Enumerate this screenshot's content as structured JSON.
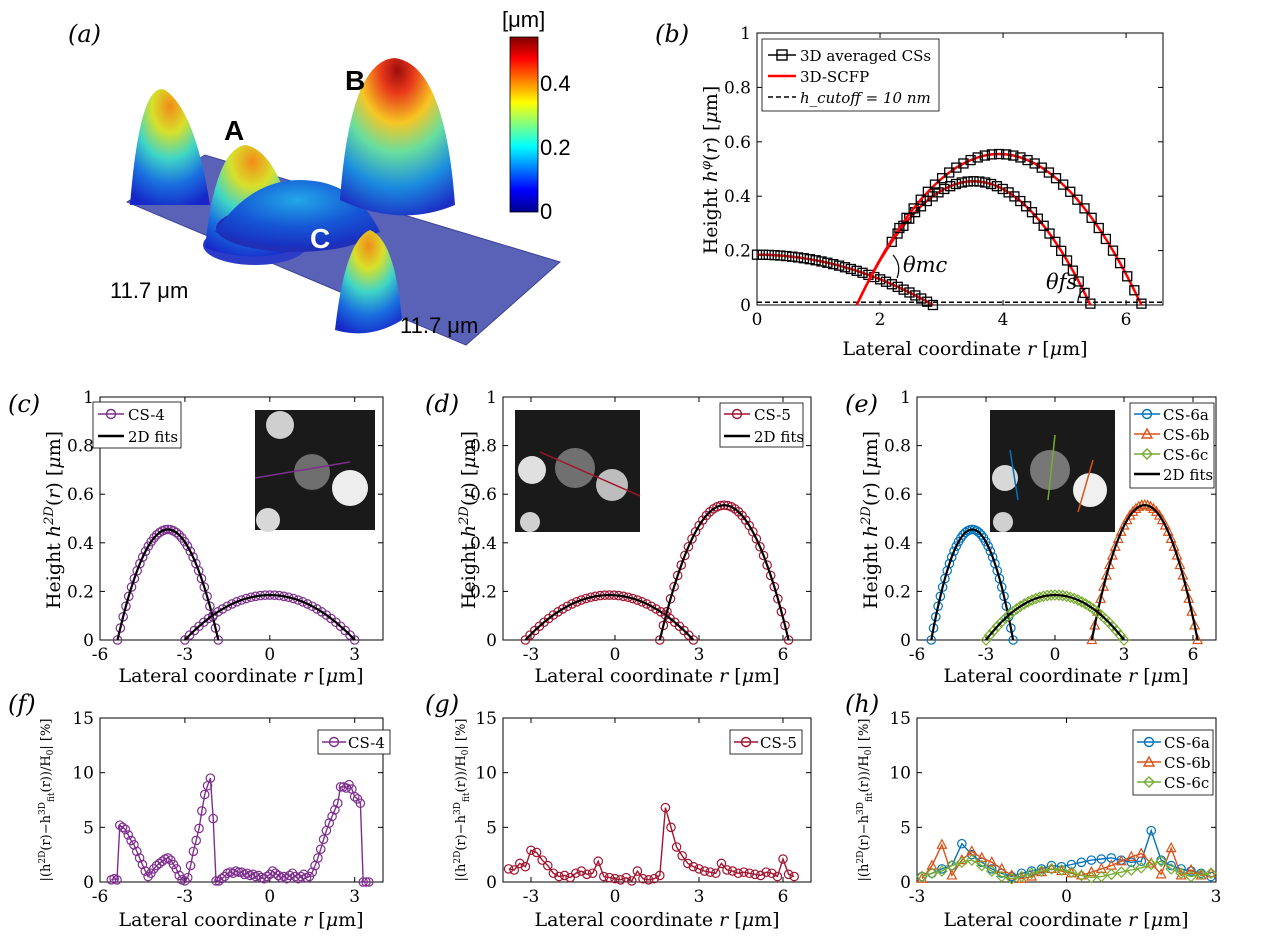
{
  "colors": {
    "purple": "#7e2f8e",
    "crimson": "#a2142f",
    "blue": "#0072bd",
    "orange": "#d95319",
    "green": "#77ac30",
    "red": "#ff0000",
    "black": "#000000"
  },
  "chart_data": [
    {
      "id": "a",
      "type": "surface3d",
      "panel_label": "(a)",
      "colorbar": {
        "unit": "[μm]",
        "ticks": [
          "0",
          "0.2",
          "0.4"
        ],
        "range": [
          0,
          0.55
        ]
      },
      "peak_labels": [
        "A",
        "B",
        "C"
      ],
      "dim_x": "11.7 μm",
      "dim_y": "11.7 μm"
    },
    {
      "id": "b",
      "type": "line",
      "panel_label": "(b)",
      "xlabel": "Lateral coordinate r [μm]",
      "ylabel": "Height h^φ(r) [μm]",
      "xlim": [
        0,
        6.6
      ],
      "ylim": [
        0,
        1
      ],
      "xticks": [
        "0",
        "2",
        "4",
        "6"
      ],
      "yticks": [
        "0",
        "0.2",
        "0.4",
        "0.6",
        "0.8",
        "1"
      ],
      "legend": [
        "3D averaged CSs",
        "3D-SCFP",
        "h_cutoff = 10 nm"
      ],
      "annotations": [
        "θmc",
        "θfs"
      ],
      "series": [
        {
          "name": "3D averaged CSs (C)",
          "x0": 0,
          "x1": 2.86,
          "h": 0.185
        },
        {
          "name": "3D averaged CSs (A)",
          "x0": 1.62,
          "x1": 5.42,
          "h": 0.455
        },
        {
          "name": "3D averaged CSs (B)",
          "x0": 1.62,
          "x1": 6.25,
          "h": 0.555
        },
        {
          "name": "h_cutoff",
          "y": 0.01
        }
      ]
    },
    {
      "id": "c",
      "type": "line",
      "panel_label": "(c)",
      "xlabel": "Lateral coordinate r [μm]",
      "ylabel": "Height h^2D(r) [μm]",
      "xlim": [
        -6,
        4
      ],
      "ylim": [
        0,
        1
      ],
      "xticks": [
        "-6",
        "-3",
        "0",
        "3"
      ],
      "yticks": [
        "0",
        "0.2",
        "0.4",
        "0.6",
        "0.8",
        "1"
      ],
      "legend": [
        "CS-4",
        "2D fits"
      ],
      "caps": [
        {
          "center": -3.6,
          "half": 1.78,
          "h": 0.455
        },
        {
          "center": 0.0,
          "half": 3.0,
          "h": 0.185
        }
      ]
    },
    {
      "id": "d",
      "type": "line",
      "panel_label": "(d)",
      "xlabel": "Lateral coordinate r [μm]",
      "ylabel": "Height h^2D(r) [μm]",
      "xlim": [
        -4,
        7
      ],
      "ylim": [
        0,
        1
      ],
      "xticks": [
        "-3",
        "0",
        "3",
        "6"
      ],
      "yticks": [
        "0",
        "0.2",
        "0.4",
        "0.6",
        "0.8",
        "1"
      ],
      "legend": [
        "CS-5",
        "2D fits"
      ],
      "caps": [
        {
          "center": -0.2,
          "half": 3.0,
          "h": 0.185
        },
        {
          "center": 3.9,
          "half": 2.3,
          "h": 0.555
        }
      ]
    },
    {
      "id": "e",
      "type": "line",
      "panel_label": "(e)",
      "xlabel": "Lateral coordinate r [μm]",
      "ylabel": "Height h^2D(r) [μm]",
      "xlim": [
        -6,
        7
      ],
      "ylim": [
        0,
        1
      ],
      "xticks": [
        "-6",
        "-3",
        "0",
        "3",
        "6"
      ],
      "yticks": [
        "0",
        "0.2",
        "0.4",
        "0.6",
        "0.8",
        "1"
      ],
      "legend": [
        "CS-6a",
        "CS-6b",
        "CS-6c",
        "2D fits"
      ],
      "caps": [
        {
          "center": -3.6,
          "half": 1.78,
          "h": 0.455
        },
        {
          "center": 3.9,
          "half": 2.3,
          "h": 0.555
        },
        {
          "center": 0.0,
          "half": 3.0,
          "h": 0.185
        }
      ]
    },
    {
      "id": "f",
      "type": "line",
      "panel_label": "(f)",
      "xlabel": "Lateral coordinate r [μm]",
      "ylabel": "|(h^2D(r) − h^3D_fit(r)) / H0| [%]",
      "xlim": [
        -6,
        4
      ],
      "ylim": [
        0,
        15
      ],
      "xticks": [
        "-6",
        "-3",
        "0",
        "3"
      ],
      "yticks": [
        "0",
        "5",
        "10",
        "15"
      ],
      "legend": [
        "CS-4"
      ],
      "series": [
        {
          "name": "CS-4",
          "x": [
            -5.6,
            -5.5,
            -5.4,
            -5.3,
            -5.2,
            -5.1,
            -5.0,
            -4.9,
            -4.8,
            -4.7,
            -4.6,
            -4.5,
            -4.4,
            -4.3,
            -4.2,
            -4.1,
            -4.0,
            -3.9,
            -3.8,
            -3.7,
            -3.6,
            -3.5,
            -3.4,
            -3.3,
            -3.2,
            -3.1,
            -3.0,
            -2.9,
            -2.8,
            -2.7,
            -2.6,
            -2.5,
            -2.4,
            -2.3,
            -2.2,
            -2.1,
            -2.0,
            -1.9,
            -1.8,
            -1.7,
            -1.6,
            -1.5,
            -1.4,
            -1.3,
            -1.2,
            -1.1,
            -1.0,
            -0.9,
            -0.8,
            -0.7,
            -0.6,
            -0.5,
            -0.4,
            -0.3,
            -0.2,
            -0.1,
            0.0,
            0.1,
            0.2,
            0.3,
            0.4,
            0.5,
            0.6,
            0.7,
            0.8,
            0.9,
            1.0,
            1.1,
            1.2,
            1.3,
            1.4,
            1.5,
            1.6,
            1.7,
            1.8,
            1.9,
            2.0,
            2.1,
            2.2,
            2.3,
            2.4,
            2.5,
            2.6,
            2.7,
            2.8,
            2.9,
            3.0,
            3.1,
            3.2,
            3.3,
            3.4,
            3.5
          ],
          "y": [
            0.2,
            0.3,
            0.2,
            5.2,
            5.0,
            4.8,
            4.3,
            3.8,
            3.4,
            2.8,
            2.2,
            1.6,
            1.0,
            0.5,
            0.8,
            1.2,
            1.5,
            1.7,
            1.9,
            2.1,
            2.2,
            2.0,
            1.6,
            1.2,
            0.6,
            0.2,
            0.1,
            0.4,
            1.5,
            2.8,
            3.8,
            4.9,
            6.5,
            8.0,
            8.8,
            9.5,
            5.8,
            0.1,
            0.1,
            0.3,
            0.5,
            0.8,
            0.9,
            0.8,
            1.0,
            0.9,
            0.9,
            0.7,
            0.8,
            0.6,
            0.7,
            0.5,
            0.6,
            0.4,
            0.3,
            0.5,
            0.7,
            1.0,
            0.8,
            0.6,
            0.4,
            0.5,
            0.3,
            0.6,
            0.8,
            0.5,
            0.3,
            0.5,
            0.7,
            0.4,
            0.5,
            0.9,
            1.5,
            2.2,
            3.0,
            3.9,
            4.7,
            5.4,
            6.0,
            6.6,
            7.2,
            8.7,
            8.7,
            8.6,
            8.9,
            8.5,
            7.8,
            7.6,
            7.2,
            0,
            0,
            0
          ]
        }
      ]
    },
    {
      "id": "g",
      "type": "line",
      "panel_label": "(g)",
      "xlabel": "Lateral coordinate r [μm]",
      "ylabel": "|(h^2D(r) − h^3D_fit(r)) / H0| [%]",
      "xlim": [
        -4,
        7
      ],
      "ylim": [
        0,
        15
      ],
      "xticks": [
        "-3",
        "0",
        "3",
        "6"
      ],
      "yticks": [
        "0",
        "5",
        "10",
        "15"
      ],
      "legend": [
        "CS-5"
      ],
      "series": [
        {
          "name": "CS-5",
          "x": [
            -3.8,
            -3.6,
            -3.4,
            -3.2,
            -3.0,
            -2.8,
            -2.6,
            -2.4,
            -2.2,
            -2.0,
            -1.8,
            -1.6,
            -1.4,
            -1.2,
            -1.0,
            -0.8,
            -0.6,
            -0.4,
            -0.2,
            0.0,
            0.2,
            0.4,
            0.6,
            0.8,
            1.0,
            1.2,
            1.4,
            1.6,
            1.8,
            2.0,
            2.2,
            2.4,
            2.6,
            2.8,
            3.0,
            3.2,
            3.4,
            3.6,
            3.8,
            4.0,
            4.2,
            4.4,
            4.6,
            4.8,
            5.0,
            5.2,
            5.4,
            5.6,
            5.8,
            6.0,
            6.2,
            6.4
          ],
          "y": [
            1.2,
            1.1,
            1.7,
            1.4,
            2.9,
            2.7,
            2.0,
            1.5,
            0.8,
            0.5,
            0.6,
            0.4,
            0.8,
            1.0,
            0.7,
            0.8,
            1.9,
            0.5,
            0.4,
            0.3,
            0.2,
            0.4,
            0.1,
            1.0,
            0.3,
            0.2,
            0.3,
            0.6,
            6.8,
            5.0,
            3.2,
            2.4,
            1.7,
            1.4,
            1.2,
            1.0,
            0.9,
            0.8,
            1.7,
            1.1,
            1.0,
            0.8,
            0.9,
            0.8,
            0.7,
            0.6,
            0.9,
            0.8,
            0.5,
            2.1,
            0.7,
            0.5
          ]
        }
      ]
    },
    {
      "id": "h",
      "type": "line",
      "panel_label": "(h)",
      "xlabel": "Lateral coordinate r [μm]",
      "ylabel": "|(h^2D(r) − h^3D_fit(r)) / H0| [%]",
      "xlim": [
        -3,
        3
      ],
      "ylim": [
        0,
        15
      ],
      "xticks": [
        "-3",
        "0",
        "3"
      ],
      "yticks": [
        "0",
        "5",
        "10",
        "15"
      ],
      "legend": [
        "CS-6a",
        "CS-6b",
        "CS-6c"
      ],
      "series": [
        {
          "name": "CS-6a",
          "x": [
            -2.9,
            -2.7,
            -2.5,
            -2.3,
            -2.1,
            -1.9,
            -1.7,
            -1.5,
            -1.3,
            -1.1,
            -0.9,
            -0.7,
            -0.5,
            -0.3,
            -0.1,
            0.1,
            0.3,
            0.5,
            0.7,
            0.9,
            1.1,
            1.3,
            1.5,
            1.7,
            1.9,
            2.1,
            2.3,
            2.5,
            2.7,
            2.9
          ],
          "y": [
            0.5,
            0.8,
            1.2,
            1.5,
            3.5,
            2.5,
            1.8,
            1.2,
            0.8,
            0.5,
            0.8,
            1.0,
            1.2,
            1.5,
            1.4,
            1.6,
            1.8,
            2.0,
            2.1,
            2.2,
            2.0,
            1.8,
            1.9,
            4.7,
            2.0,
            1.5,
            1.2,
            1.0,
            0.8,
            0.5
          ]
        },
        {
          "name": "CS-6b",
          "x": [
            -2.9,
            -2.7,
            -2.5,
            -2.3,
            -2.1,
            -1.9,
            -1.7,
            -1.5,
            -1.3,
            -1.1,
            -0.9,
            -0.7,
            -0.5,
            -0.3,
            -0.1,
            0.1,
            0.3,
            0.5,
            0.7,
            0.9,
            1.1,
            1.3,
            1.5,
            1.7,
            1.9,
            2.1,
            2.3,
            2.5,
            2.7,
            2.9
          ],
          "y": [
            0.3,
            1.5,
            3.4,
            0.6,
            2.0,
            2.8,
            2.2,
            1.8,
            1.2,
            0.6,
            0.3,
            0.5,
            0.9,
            1.2,
            1.0,
            0.8,
            0.6,
            0.9,
            1.2,
            1.5,
            1.9,
            2.3,
            2.6,
            1.7,
            0.7,
            3.1,
            0.6,
            1.1,
            0.6,
            0.8
          ]
        },
        {
          "name": "CS-6c",
          "x": [
            -2.9,
            -2.7,
            -2.5,
            -2.3,
            -2.1,
            -1.9,
            -1.7,
            -1.5,
            -1.3,
            -1.1,
            -0.9,
            -0.7,
            -0.5,
            -0.3,
            -0.1,
            0.1,
            0.3,
            0.5,
            0.7,
            0.9,
            1.1,
            1.3,
            1.5,
            1.7,
            1.9,
            2.1,
            2.3,
            2.5,
            2.7,
            2.9
          ],
          "y": [
            0.5,
            0.8,
            1.0,
            1.5,
            1.8,
            2.0,
            1.5,
            1.0,
            0.5,
            0.3,
            0.5,
            0.8,
            1.0,
            1.2,
            1.1,
            0.9,
            0.6,
            0.4,
            0.5,
            0.7,
            0.9,
            1.1,
            1.3,
            1.6,
            1.9,
            1.2,
            0.8,
            0.5,
            0.7,
            0.8
          ]
        }
      ]
    }
  ]
}
